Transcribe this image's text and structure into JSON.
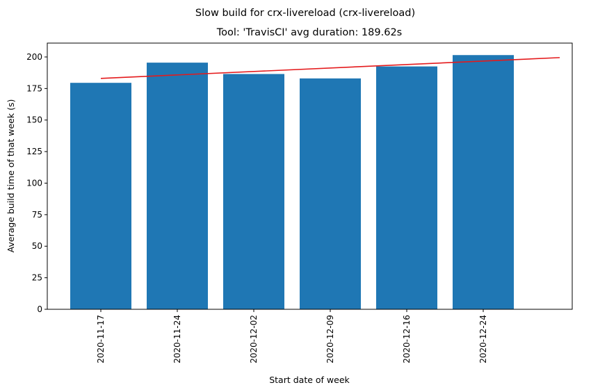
{
  "chart_data": {
    "type": "bar",
    "suptitle": "Slow build for crx-livereload (crx-livereload)",
    "title": "Tool: 'TravisCI' avg duration: 189.62s",
    "xlabel": "Start date of week",
    "ylabel": "Average build time of that week (s)",
    "categories": [
      "2020-11-17",
      "2020-11-24",
      "2020-12-02",
      "2020-12-09",
      "2020-12-16",
      "2020-12-24"
    ],
    "values": [
      179.5,
      195.5,
      186.5,
      183,
      192.5,
      201.5
    ],
    "ylim": [
      0,
      211
    ],
    "yticks": [
      "0",
      "25",
      "50",
      "75",
      "100",
      "125",
      "150",
      "175",
      "200"
    ],
    "trend_line": {
      "start": 183,
      "end": 199.5
    },
    "colors": {
      "bar": "#1f77b4",
      "trend": "#e41a1c"
    },
    "grid": false,
    "legend": "none"
  }
}
